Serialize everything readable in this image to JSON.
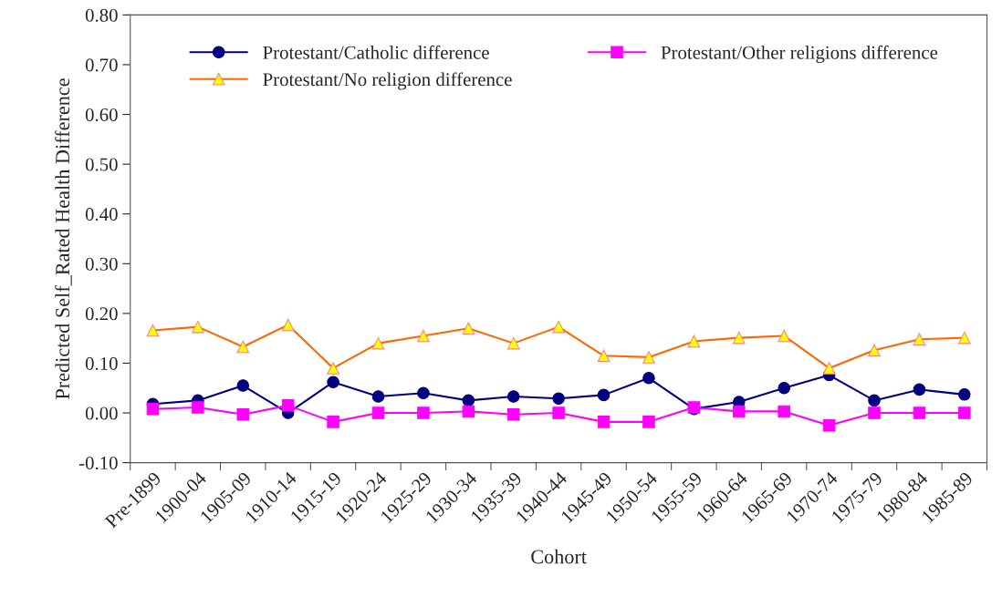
{
  "chart_data": {
    "type": "line",
    "xlabel": "Cohort",
    "ylabel": "Predicted Self_Rated Health Difference",
    "categories": [
      "Pre-1899",
      "1900-04",
      "1905-09",
      "1910-14",
      "1915-19",
      "1920-24",
      "1925-29",
      "1930-34",
      "1935-39",
      "1940-44",
      "1945-49",
      "1950-54",
      "1955-59",
      "1960-64",
      "1965-69",
      "1970-74",
      "1975-79",
      "1980-84",
      "1985-89"
    ],
    "series": [
      {
        "name": "Protestant/Catholic difference",
        "color": "#000080",
        "marker": "circle",
        "values": [
          0.018,
          0.025,
          0.055,
          0.0,
          0.062,
          0.033,
          0.04,
          0.025,
          0.033,
          0.029,
          0.036,
          0.07,
          0.008,
          0.022,
          0.05,
          0.076,
          0.025,
          0.047,
          0.037
        ]
      },
      {
        "name": "Protestant/Other religions difference",
        "color": "#ff00ff",
        "marker": "square",
        "values": [
          0.008,
          0.011,
          -0.003,
          0.015,
          -0.018,
          0.0,
          0.0,
          0.003,
          -0.003,
          0.0,
          -0.018,
          -0.018,
          0.011,
          0.003,
          0.003,
          -0.025,
          0.0,
          0.0,
          0.0
        ]
      },
      {
        "name": "Protestant/No religion difference",
        "color": "#ff6600",
        "marker": "triangle",
        "values": [
          0.166,
          0.173,
          0.133,
          0.177,
          0.09,
          0.14,
          0.155,
          0.17,
          0.14,
          0.173,
          0.115,
          0.112,
          0.144,
          0.151,
          0.155,
          0.09,
          0.126,
          0.148,
          0.151
        ]
      }
    ],
    "ylim": [
      -0.1,
      0.8
    ],
    "yticks": [
      {
        "value": -0.1,
        "label": "-0.10"
      },
      {
        "value": 0.0,
        "label": "0.00"
      },
      {
        "value": 0.1,
        "label": "0.10"
      },
      {
        "value": 0.2,
        "label": "0.20"
      },
      {
        "value": 0.3,
        "label": "0.30"
      },
      {
        "value": 0.4,
        "label": "0.40"
      },
      {
        "value": 0.5,
        "label": "0.50"
      },
      {
        "value": 0.6,
        "label": "0.60"
      },
      {
        "value": 0.7,
        "label": "0.70"
      },
      {
        "value": 0.8,
        "label": "0.80"
      }
    ],
    "grid": false,
    "legend": "top left"
  }
}
